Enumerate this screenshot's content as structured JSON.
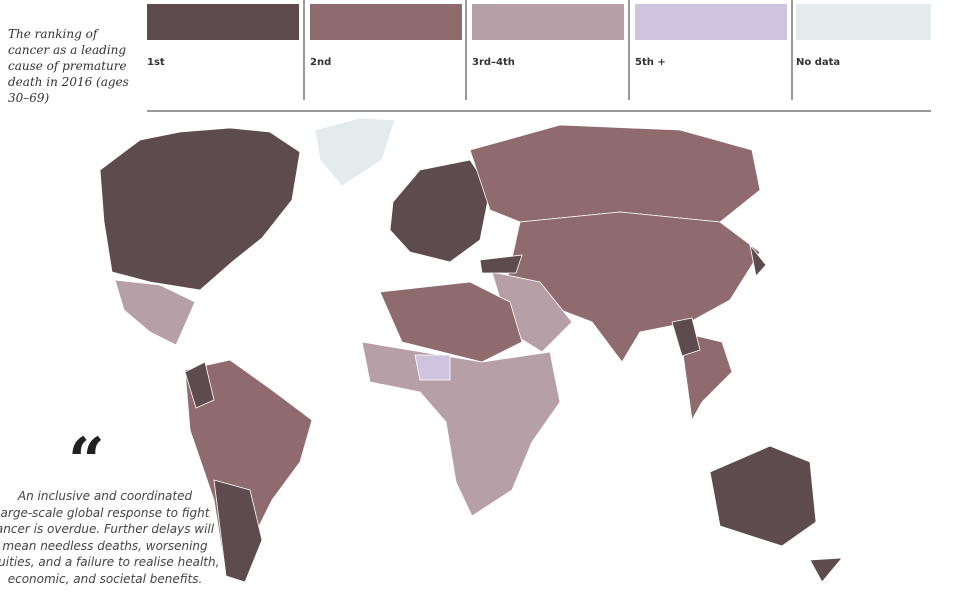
{
  "title": "The ranking of cancer as a leading cause of premature death in 2016 (ages 30–69)",
  "legend": [
    {
      "label": "1st",
      "color": "#5e4b4d"
    },
    {
      "label": "2nd",
      "color": "#8f6b6e"
    },
    {
      "label": "3rd–4th",
      "color": "#b79fa8"
    },
    {
      "label": "5th +",
      "color": "#cfc4df"
    },
    {
      "label": "No data",
      "color": "#e3ecec"
    }
  ],
  "quote": {
    "mark": "“",
    "lines": [
      "An inclusive and coordinated",
      "arge-scale global response to fight",
      "ancer is overdue. Further delays will",
      "mean needless deaths, worsening",
      "quities, and a failure to realise health,",
      "economic, and societal benefits."
    ]
  }
}
